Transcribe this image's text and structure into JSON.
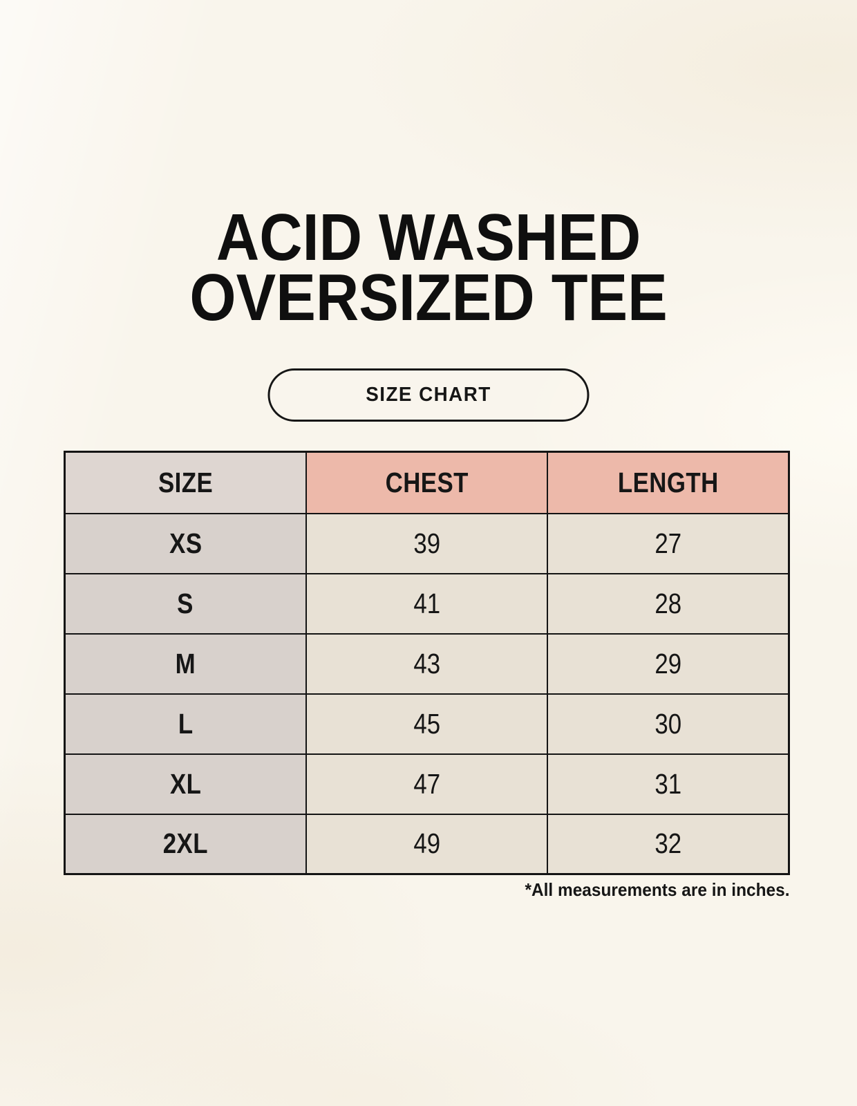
{
  "header": {
    "title_line1": "ACID WASHED",
    "title_line2": "OVERSIZED TEE",
    "badge_label": "SIZE CHART"
  },
  "footnote": "*All measurements are in inches.",
  "colors": {
    "page_bg": "#f9f5ec",
    "size_column_bg": "#d8d1cc",
    "size_header_bg": "#ded6d1",
    "measure_header_bg": "#edb9aa",
    "cell_bg": "#e8e1d5",
    "grid_border": "#141414",
    "text": "#161616"
  },
  "chart_data": {
    "type": "table",
    "title": "ACID WASHED OVERSIZED TEE",
    "subtitle": "SIZE CHART",
    "columns": [
      "SIZE",
      "CHEST",
      "LENGTH"
    ],
    "rows": [
      {
        "size": "XS",
        "chest": 39,
        "length": 27
      },
      {
        "size": "S",
        "chest": 41,
        "length": 28
      },
      {
        "size": "M",
        "chest": 43,
        "length": 29
      },
      {
        "size": "L",
        "chest": 45,
        "length": 30
      },
      {
        "size": "XL",
        "chest": 47,
        "length": 31
      },
      {
        "size": "2XL",
        "chest": 49,
        "length": 32
      }
    ],
    "units": "inches",
    "note": "*All measurements are in inches."
  }
}
